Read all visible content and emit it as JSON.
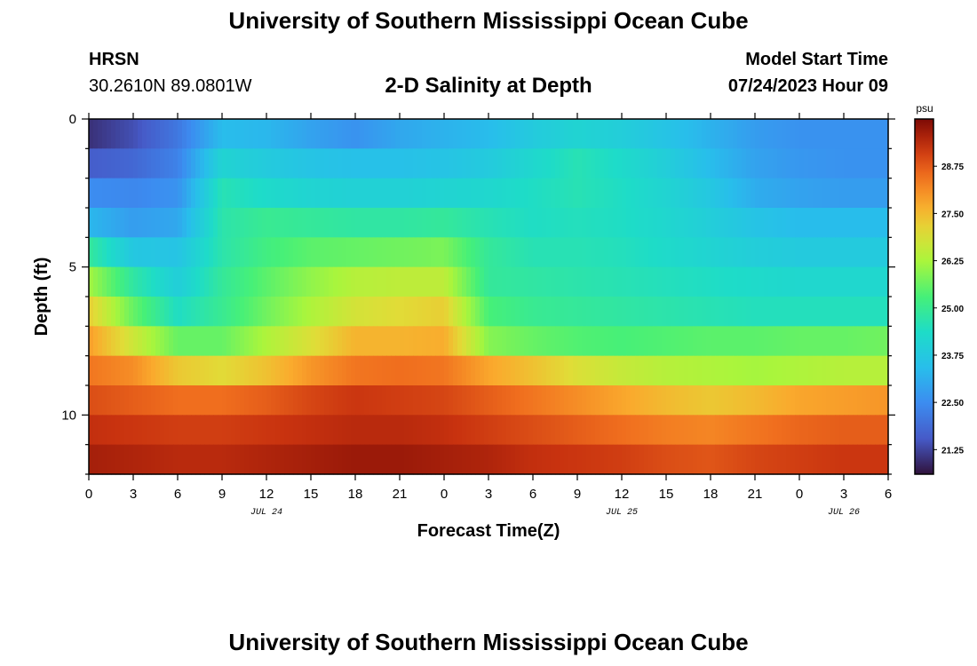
{
  "page": {
    "title_top": "University of Southern Mississippi Ocean Cube",
    "title_bottom": "University of Southern Mississippi Ocean Cube",
    "station": "HRSN",
    "coords": "30.2610N  89.0801W",
    "plot_title": "2-D Salinity at Depth",
    "start_label": "Model Start Time",
    "start_value": "07/24/2023 Hour 09"
  },
  "chart_data": {
    "type": "heatmap",
    "title": "2-D Salinity at Depth",
    "xlabel": "Forecast Time(Z)",
    "ylabel": "Depth (ft)",
    "x_tick_labels": [
      "0",
      "3",
      "6",
      "9",
      "12",
      "15",
      "18",
      "21",
      "0",
      "3",
      "6",
      "9",
      "12",
      "15",
      "18",
      "21",
      "0",
      "3",
      "6"
    ],
    "x_range_hours": [
      0,
      54
    ],
    "date_labels": [
      {
        "text": "JUL 24",
        "at_hour": 12
      },
      {
        "text": "JUL 25",
        "at_hour": 36
      },
      {
        "text": "JUL 26",
        "at_hour": 51
      }
    ],
    "y_tick_labels": [
      "0",
      "5",
      "10"
    ],
    "y_range": [
      0,
      12
    ],
    "y_inverted": true,
    "colorbar": {
      "unit": "psu",
      "min": 20.6,
      "max": 30.0,
      "tick_values": [
        21.25,
        22.5,
        23.75,
        25.0,
        26.25,
        27.5,
        28.75
      ],
      "tick_labels": [
        "21.25",
        "22.50",
        "23.75",
        "25.00",
        "26.25",
        "27.50",
        "28.75"
      ]
    },
    "depth_levels": [
      0.5,
      1.5,
      2.5,
      3.5,
      4.5,
      5.5,
      6.5,
      7.5,
      8.5,
      9.5,
      10.5,
      11.5
    ],
    "time_keys": [
      0,
      3,
      6,
      9,
      12,
      15,
      18,
      21,
      24,
      27,
      30,
      33,
      36,
      39,
      42,
      45,
      48,
      51,
      54
    ],
    "salinity": [
      [
        21.0,
        21.4,
        22.1,
        23.4,
        23.3,
        22.9,
        22.6,
        23.0,
        23.2,
        23.4,
        23.8,
        24.1,
        23.9,
        23.6,
        23.2,
        22.8,
        22.6,
        22.6,
        22.6
      ],
      [
        21.6,
        21.8,
        22.3,
        24.1,
        23.8,
        23.6,
        23.5,
        23.5,
        23.6,
        23.8,
        24.2,
        24.6,
        24.3,
        23.9,
        23.4,
        22.9,
        22.7,
        22.6,
        22.6
      ],
      [
        22.5,
        22.4,
        22.6,
        24.6,
        24.3,
        24.1,
        24.0,
        24.0,
        24.1,
        24.2,
        24.4,
        24.6,
        24.4,
        24.1,
        23.7,
        23.1,
        22.9,
        22.8,
        22.8
      ],
      [
        23.3,
        22.8,
        23.0,
        24.7,
        25.0,
        24.9,
        24.8,
        24.8,
        24.9,
        24.6,
        24.4,
        24.5,
        24.4,
        24.2,
        23.9,
        23.6,
        23.4,
        23.4,
        23.4
      ],
      [
        24.9,
        23.7,
        23.6,
        24.7,
        25.2,
        25.5,
        25.6,
        25.7,
        25.8,
        24.9,
        24.6,
        24.6,
        24.5,
        24.3,
        24.1,
        23.9,
        23.8,
        23.8,
        23.8
      ],
      [
        26.2,
        24.8,
        23.9,
        24.9,
        25.5,
        26.0,
        26.4,
        26.5,
        26.5,
        24.9,
        24.8,
        24.7,
        24.6,
        24.5,
        24.4,
        24.3,
        24.2,
        24.2,
        24.2
      ],
      [
        27.2,
        25.6,
        24.4,
        25.0,
        25.7,
        26.3,
        26.8,
        27.0,
        27.2,
        25.3,
        25.0,
        24.9,
        24.8,
        24.7,
        24.6,
        24.5,
        24.5,
        24.5,
        24.5
      ],
      [
        27.9,
        26.7,
        25.6,
        25.6,
        26.3,
        26.9,
        27.6,
        27.6,
        27.7,
        25.9,
        25.6,
        25.4,
        25.3,
        25.4,
        25.5,
        25.5,
        25.6,
        25.6,
        25.7
      ],
      [
        28.4,
        28.1,
        27.3,
        27.0,
        27.4,
        28.0,
        28.4,
        28.5,
        28.4,
        27.8,
        27.4,
        26.9,
        26.6,
        26.4,
        26.3,
        26.2,
        26.3,
        26.4,
        26.4
      ],
      [
        28.9,
        28.7,
        28.5,
        28.5,
        28.7,
        29.0,
        29.2,
        29.1,
        29.0,
        28.7,
        28.4,
        28.1,
        27.8,
        27.5,
        27.3,
        27.5,
        27.8,
        27.9,
        28.0
      ],
      [
        29.3,
        29.2,
        29.1,
        29.1,
        29.2,
        29.3,
        29.4,
        29.4,
        29.3,
        29.1,
        28.9,
        28.7,
        28.5,
        28.3,
        28.2,
        28.4,
        28.6,
        28.7,
        28.7
      ],
      [
        29.6,
        29.5,
        29.4,
        29.4,
        29.5,
        29.6,
        29.7,
        29.7,
        29.6,
        29.5,
        29.3,
        29.2,
        29.1,
        28.9,
        28.8,
        29.0,
        29.1,
        29.2,
        29.2
      ]
    ]
  }
}
